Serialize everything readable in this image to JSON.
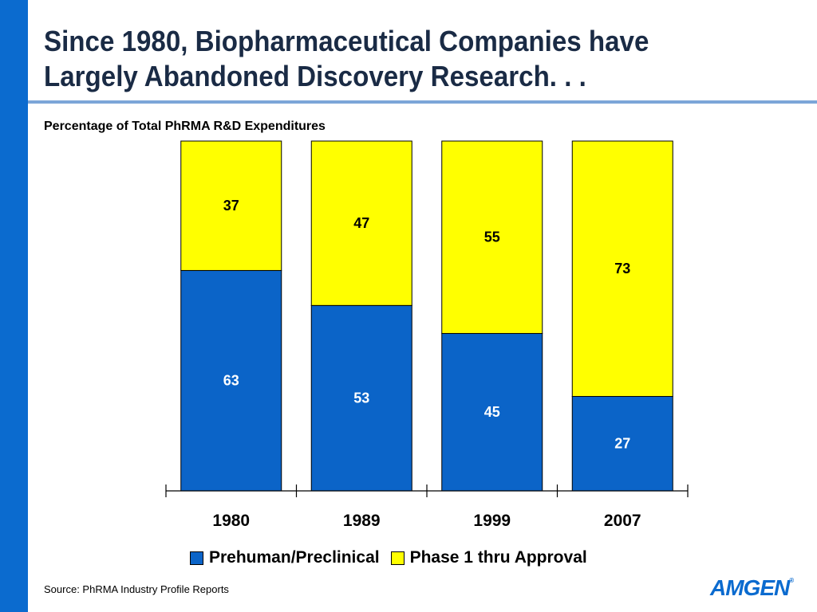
{
  "title_lines": [
    "Since 1980, Biopharmaceutical Companies have",
    "Largely Abandoned Discovery Research. . ."
  ],
  "source": "Source: PhRMA Industry Profile Reports",
  "logo": {
    "text": "AMGEN",
    "mark": "®"
  },
  "colors": {
    "accent": "#0b6bcf",
    "preclinical": "#0b64c8",
    "phase": "#ffff00",
    "title": "#1a2b45"
  },
  "chart_data": {
    "type": "bar",
    "stacked": true,
    "title": "Percentage of Total PhRMA R&D Expenditures",
    "categories": [
      "1980",
      "1989",
      "1999",
      "2007"
    ],
    "series": [
      {
        "name": "Prehuman/Preclinical",
        "values": [
          63,
          53,
          45,
          27
        ],
        "color": "#0b64c8"
      },
      {
        "name": "Phase 1 thru Approval",
        "values": [
          37,
          47,
          55,
          73
        ],
        "color": "#ffff00"
      }
    ],
    "ylim": [
      0,
      100
    ],
    "grid": false,
    "legend": "bottom"
  }
}
